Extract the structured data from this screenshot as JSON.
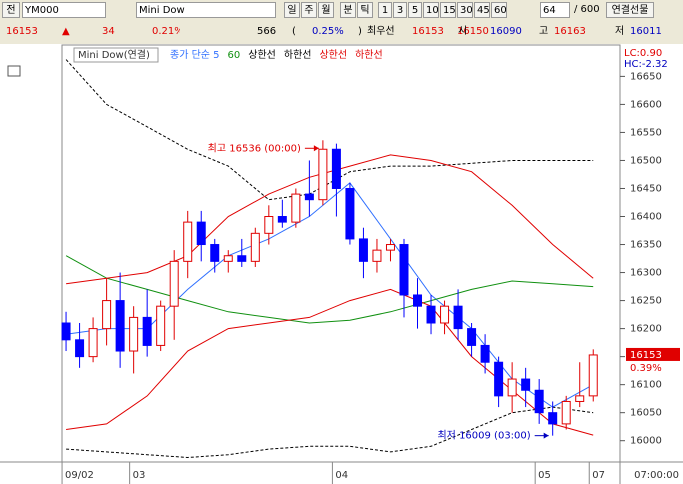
{
  "toolbar": {
    "row1": [
      "전",
      "YM000",
      "Mini Dow",
      "일",
      "주",
      "월",
      "분",
      "틱",
      "1",
      "3",
      "5",
      "10",
      "15",
      "30",
      "45",
      "60",
      "64",
      "/ 600",
      "연결선물"
    ],
    "row2": [
      "16153",
      "▲",
      "34",
      "0.21%",
      "566",
      "(",
      "0.25%",
      ")",
      "최우선",
      "16153",
      "16150",
      "시",
      "16090",
      "고",
      "16163",
      "저",
      "16011"
    ]
  },
  "chart_data": {
    "type": "candlestick",
    "title": "Mini Dow(연결)",
    "x": [
      0,
      1,
      2,
      3,
      4,
      5,
      6,
      7,
      8,
      9,
      10,
      11,
      12,
      13,
      14,
      15,
      16,
      17,
      18,
      19,
      20,
      21,
      22,
      23,
      24,
      25,
      26,
      27,
      28,
      29,
      30,
      31,
      32,
      33,
      34,
      35,
      36,
      37,
      38,
      39
    ],
    "open": [
      16210,
      16180,
      16150,
      16200,
      16250,
      16160,
      16220,
      16170,
      16240,
      16320,
      16390,
      16350,
      16320,
      16330,
      16320,
      16370,
      16400,
      16390,
      16440,
      16430,
      16520,
      16450,
      16360,
      16320,
      16340,
      16350,
      16260,
      16240,
      16210,
      16240,
      16200,
      16170,
      16140,
      16080,
      16110,
      16090,
      16050,
      16030,
      16070,
      16080
    ],
    "high": [
      16230,
      16210,
      16220,
      16290,
      16300,
      16240,
      16270,
      16250,
      16340,
      16410,
      16410,
      16360,
      16340,
      16360,
      16380,
      16420,
      16430,
      16450,
      16500,
      16536,
      16530,
      16460,
      16380,
      16360,
      16360,
      16360,
      16290,
      16260,
      16250,
      16270,
      16210,
      16190,
      16150,
      16140,
      16130,
      16110,
      16070,
      16080,
      16140,
      16163
    ],
    "low": [
      16160,
      16130,
      16140,
      16170,
      16130,
      16120,
      16150,
      16160,
      16180,
      16290,
      16320,
      16300,
      16300,
      16310,
      16310,
      16350,
      16380,
      16380,
      16400,
      16420,
      16400,
      16350,
      16290,
      16300,
      16320,
      16220,
      16200,
      16190,
      16190,
      16180,
      16150,
      16120,
      16060,
      16050,
      16060,
      16030,
      16009,
      16020,
      16060,
      16070
    ],
    "close": [
      16180,
      16150,
      16200,
      16250,
      16160,
      16220,
      16170,
      16240,
      16320,
      16390,
      16350,
      16320,
      16330,
      16320,
      16370,
      16400,
      16390,
      16440,
      16430,
      16520,
      16450,
      16360,
      16320,
      16340,
      16350,
      16260,
      16240,
      16210,
      16240,
      16200,
      16170,
      16140,
      16080,
      16110,
      16090,
      16050,
      16030,
      16070,
      16080,
      16153
    ],
    "up_color": "#e00000",
    "down_color": "#0000ff",
    "series": [
      {
        "name": "종가 단순 5",
        "color": "#3070ff",
        "dash": false,
        "x": [
          0,
          3,
          6,
          9,
          12,
          15,
          18,
          21,
          24,
          27,
          30,
          33,
          36,
          39
        ],
        "values": [
          16190,
          16200,
          16200,
          16270,
          16330,
          16360,
          16400,
          16460,
          16360,
          16260,
          16200,
          16110,
          16060,
          16100
        ]
      },
      {
        "name": "60",
        "color": "#109010",
        "dash": false,
        "x": [
          0,
          3,
          6,
          9,
          12,
          15,
          18,
          21,
          24,
          27,
          30,
          33,
          36,
          39
        ],
        "values": [
          16330,
          16290,
          16270,
          16250,
          16230,
          16220,
          16210,
          16215,
          16230,
          16250,
          16270,
          16285,
          16280,
          16275
        ]
      },
      {
        "name": "상한선",
        "color": "#000000",
        "dash": true,
        "x": [
          0,
          3,
          6,
          9,
          12,
          15,
          18,
          21,
          24,
          27,
          30,
          33,
          36,
          39
        ],
        "values": [
          16680,
          16600,
          16560,
          16520,
          16490,
          16430,
          16440,
          16480,
          16490,
          16490,
          16495,
          16500,
          16500,
          16500
        ]
      },
      {
        "name": "하한선",
        "color": "#000000",
        "dash": true,
        "x": [
          0,
          3,
          6,
          9,
          12,
          15,
          18,
          21,
          24,
          27,
          30,
          33,
          36,
          39
        ],
        "values": [
          15985,
          15980,
          15975,
          15970,
          15975,
          15985,
          15990,
          15990,
          15980,
          15990,
          16020,
          16050,
          16060,
          16050
        ]
      },
      {
        "name": "상한선",
        "color": "#e00000",
        "dash": false,
        "x": [
          0,
          3,
          6,
          9,
          12,
          15,
          18,
          21,
          24,
          27,
          30,
          33,
          36,
          39
        ],
        "values": [
          16280,
          16290,
          16300,
          16330,
          16400,
          16440,
          16470,
          16490,
          16510,
          16500,
          16480,
          16420,
          16350,
          16290
        ]
      },
      {
        "name": "하한선",
        "color": "#e00000",
        "dash": false,
        "x": [
          0,
          3,
          6,
          9,
          12,
          15,
          18,
          21,
          24,
          27,
          30,
          33,
          36,
          39
        ],
        "values": [
          16020,
          16030,
          16080,
          16160,
          16200,
          16210,
          16220,
          16250,
          16270,
          16240,
          16150,
          16090,
          16030,
          16010
        ]
      }
    ],
    "annotations": [
      {
        "text": "최고 16536 (00:00)",
        "x": 19,
        "y": 16536,
        "color": "#e00000",
        "side": "left"
      },
      {
        "text": "최저 16009 (03:00)",
        "x": 36,
        "y": 16009,
        "color": "#0000c0",
        "side": "left"
      }
    ],
    "last_value": 16153,
    "last_change": "0.39%",
    "corner_texts": [
      "LC:0.90",
      "HC:-2.32"
    ],
    "xlim": [
      -0.3,
      39.5
    ],
    "xticks": [
      {
        "value": 0,
        "label": "09/02"
      },
      {
        "value": 5,
        "label": "03"
      },
      {
        "value": 20,
        "label": "04"
      },
      {
        "value": 35,
        "label": "05"
      },
      {
        "value": 39,
        "label": "07"
      }
    ],
    "x_end_label": "07:00:00",
    "ylim": [
      15962,
      16706
    ],
    "yticks": [
      16000,
      16050,
      16100,
      16150,
      16200,
      16250,
      16300,
      16350,
      16400,
      16450,
      16500,
      16550,
      16600,
      16650
    ]
  }
}
